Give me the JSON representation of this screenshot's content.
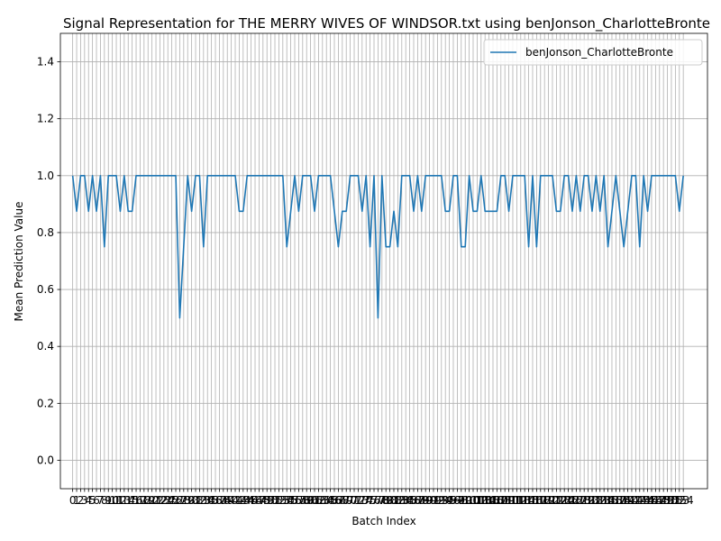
{
  "chart_data": {
    "type": "line",
    "title": "Signal Representation for THE MERRY WIVES OF WINDSOR.txt using benJonson_CharlotteBronte",
    "xlabel": "Batch Index",
    "ylabel": "Mean Prediction Value",
    "ylim": [
      -0.1,
      1.5
    ],
    "xlim": [
      -3.1,
      160.1
    ],
    "yticks": [
      0.0,
      0.2,
      0.4,
      0.6,
      0.8,
      1.0,
      1.2,
      1.4
    ],
    "grid": true,
    "legend_position": "upper-right",
    "colors": {
      "series": "#1f77b4",
      "grid": "#b0b0b0"
    },
    "series": [
      {
        "name": "benJonson_CharlotteBronte",
        "values": [
          1,
          0.875,
          1,
          1,
          0.875,
          1,
          0.875,
          1,
          0.75,
          1,
          1,
          1,
          0.875,
          1,
          0.875,
          0.875,
          1,
          1,
          1,
          1,
          1,
          1,
          1,
          1,
          1,
          1,
          1,
          0.5,
          0.75,
          1,
          0.875,
          1,
          1,
          0.75,
          1,
          1,
          1,
          1,
          1,
          1,
          1,
          1,
          0.875,
          0.875,
          1,
          1,
          1,
          1,
          1,
          1,
          1,
          1,
          1,
          1,
          0.75,
          0.875,
          1,
          0.875,
          1,
          1,
          1,
          0.875,
          1,
          1,
          1,
          1,
          0.875,
          0.75,
          0.875,
          0.875,
          1,
          1,
          1,
          0.875,
          1,
          0.75,
          1,
          0.5,
          1,
          0.75,
          0.75,
          0.875,
          0.75,
          1,
          1,
          1,
          0.875,
          1,
          0.875,
          1,
          1,
          1,
          1,
          1,
          0.875,
          0.875,
          1,
          1,
          0.75,
          0.75,
          1,
          0.875,
          0.875,
          1,
          0.875,
          0.875,
          0.875,
          0.875,
          1,
          1,
          0.875,
          1,
          1,
          1,
          1,
          0.75,
          1,
          0.75,
          1,
          1,
          1,
          1,
          0.875,
          0.875,
          1,
          1,
          0.875,
          1,
          0.875,
          1,
          1,
          0.875,
          1,
          0.875,
          1,
          0.75,
          0.875,
          1,
          0.875,
          0.75,
          0.875,
          1,
          1,
          0.75,
          1,
          0.875,
          1,
          1,
          1,
          1,
          1,
          1,
          1,
          0.875,
          1
        ]
      }
    ]
  }
}
